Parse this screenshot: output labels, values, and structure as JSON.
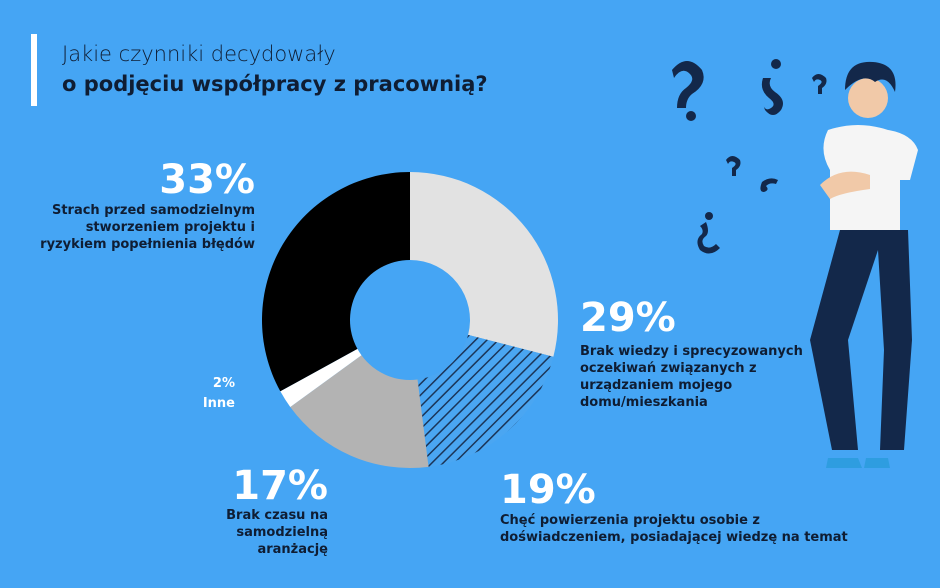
{
  "chart_data": {
    "type": "donut",
    "title": "Jakie czynniki decydowały",
    "subtitle": "o podjęciu współpracy z pracownią?",
    "categories": [
      "Brak wiedzy i sprecyzowanych oczekiwań związanych z urządzaniem mojego domu/mieszkania",
      "Chęć powierzenia projektu osobie z doświadczeniem, posiadającej wiedzę na temat",
      "Brak czasu na samodzielną aranżację",
      "Inne",
      "Strach przed samodzielnym stworzeniem projektu i ryzykiem popełnienia błędów"
    ],
    "values": [
      29,
      19,
      17,
      2,
      33
    ],
    "value_labels": [
      "29%",
      "19%",
      "17%",
      "2%",
      "33%"
    ],
    "colors": [
      "#e2e2e2",
      "hatch",
      "#b3b3b3",
      "#ffffff",
      "#000000"
    ]
  }
}
